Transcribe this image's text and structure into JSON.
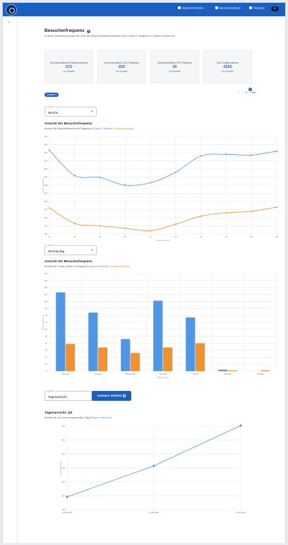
{
  "header": {
    "nav": [
      {
        "label": "Allgemeinmedizine",
        "icon": "user-icon"
      },
      {
        "label": "Benutzerhandbuch",
        "icon": "book-icon"
      },
      {
        "label": "Feedback",
        "icon": "chat-icon"
      }
    ],
    "avatar_initials": "D",
    "accent": "#1b5fc1"
  },
  "page": {
    "title": "Besucherfrequenz",
    "subtitle": "In dieser Darstellung sehen Sie Ihren alle Besucherfrequenzstatistik Ihrer Praxis im Vergleich zu anderen Praxen der"
  },
  "kpis": [
    {
      "label": "Durchschnittlicher Patientenbesuch",
      "value": "272",
      "unit": "pro Quartal"
    },
    {
      "label": "Durchschnittliche GKV-Patienten",
      "value": "252",
      "unit": "pro Quartal"
    },
    {
      "label": "Durchschnittliche PKV-Patienten",
      "value": "20",
      "unit": "pro Quartal"
    },
    {
      "label": "Zahl Vergleichsärzte",
      "value": "2225",
      "unit": "pro Quartal"
    }
  ],
  "toolbar": {
    "chip": "Quartal 3",
    "filter_label": "Filter",
    "filter_count": "1"
  },
  "legend": {
    "own": "Eigene Patienten",
    "compare": "Vergleichsgruppe"
  },
  "colors": {
    "own": "#4e97e8",
    "compare": "#f0922f"
  },
  "week_select": {
    "label": "Ansicht",
    "value": "Woche"
  },
  "weekday_select": {
    "label": "Ansicht",
    "value": "Wochentag"
  },
  "day_select": {
    "label": "Ansicht",
    "value": "Tagesansicht"
  },
  "change_button": "AUSWAHL ÄNDERN",
  "chart_data": [
    {
      "type": "line",
      "title": "Ansicht der Besuchsfrequenz",
      "subtitle_prefix": "Ansicht der Besuchsfrequenz im Diagramm",
      "xlabel": "Kalenderwoche",
      "ylabel": "Anzahl Patienten",
      "x": [
        "27",
        "28",
        "29",
        "30",
        "31",
        "32",
        "33",
        "34",
        "35",
        "36"
      ],
      "ylim": [
        100,
        700
      ],
      "yticks": [
        100,
        150,
        200,
        250,
        300,
        350,
        400,
        450,
        500,
        550,
        600,
        650,
        700
      ],
      "series": [
        {
          "name": "Eigene Patienten",
          "values": [
            615,
            460,
            448,
            400,
            415,
            480,
            580,
            590,
            585,
            610
          ]
        },
        {
          "name": "Vergleichsgruppe",
          "values": [
            260,
            165,
            150,
            135,
            120,
            160,
            210,
            230,
            240,
            265
          ]
        }
      ]
    },
    {
      "type": "bar",
      "title": "Ansicht der Besuchsfrequenz",
      "subtitle_prefix": "Ansicht der Praxis-Anzahl im Diagramm",
      "xlabel": "Wochentage",
      "ylabel": "Anzahl Patienten",
      "categories": [
        "Monday",
        "Tuesday",
        "Wednesday",
        "Thursday",
        "Friday",
        "Saturday",
        "Sunday"
      ],
      "ylim": [
        0,
        140
      ],
      "yticks": [
        0,
        10,
        20,
        30,
        40,
        50,
        60,
        70,
        80,
        90,
        100,
        110,
        120,
        130,
        140
      ],
      "series": [
        {
          "name": "Eigene Patienten",
          "values": [
            113,
            84,
            46,
            101,
            77,
            2,
            0
          ]
        },
        {
          "name": "Vergleichsgruppe",
          "values": [
            39,
            34,
            26,
            34,
            40,
            1,
            1
          ]
        }
      ]
    },
    {
      "type": "line",
      "title": "Tagesansicht, Q3",
      "subtitle_prefix": "Ansicht der von Ihnen ausgewählten Tage",
      "ylabel": "Anzahl Patienten",
      "x": [
        "11.09.2022",
        "12.09.2022",
        "13.09.2022"
      ],
      "ylim": [
        100,
        700
      ],
      "yticks": [
        100,
        200,
        300,
        400,
        500,
        600,
        700
      ],
      "series": [
        {
          "name": "Eigene Patienten",
          "values": [
            192,
            415,
            705
          ]
        }
      ]
    }
  ]
}
